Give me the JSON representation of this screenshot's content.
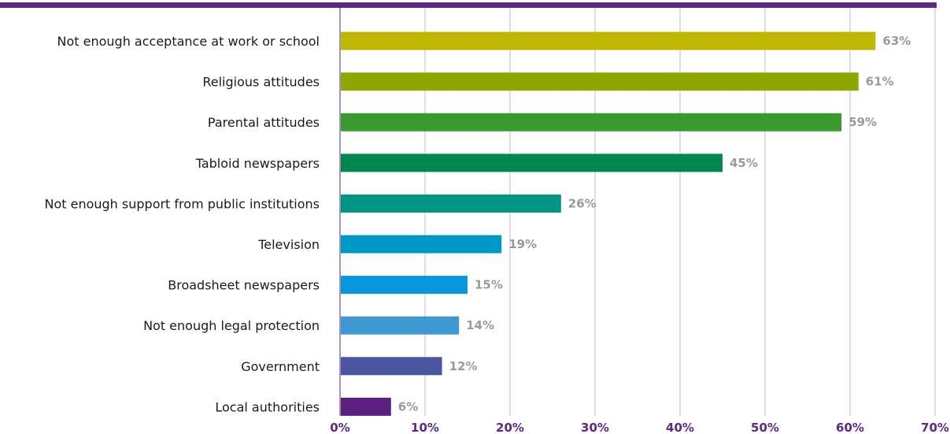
{
  "chart_data": {
    "type": "bar",
    "orientation": "horizontal",
    "categories": [
      "Not enough acceptance at work or school",
      "Religious attitudes",
      "Parental attitudes",
      "Tabloid newspapers",
      "Not enough support from public institutions",
      "Television",
      "Broadsheet newspapers",
      "Not enough legal protection",
      "Government",
      "Local authorities"
    ],
    "values": [
      63,
      61,
      59,
      45,
      26,
      19,
      15,
      14,
      12,
      6
    ],
    "value_labels": [
      "63%",
      "61%",
      "59%",
      "45%",
      "26%",
      "19%",
      "15%",
      "14%",
      "12%",
      "6%"
    ],
    "bar_colors": [
      "#c0b800",
      "#8fa800",
      "#3a9a2e",
      "#00874f",
      "#009484",
      "#0098c6",
      "#0a96dc",
      "#3d98d2",
      "#4a56a0",
      "#5a2080"
    ],
    "xlim": [
      0,
      70
    ],
    "x_ticks": [
      0,
      10,
      20,
      30,
      40,
      50,
      60,
      70
    ],
    "x_tick_labels": [
      "0%",
      "10%",
      "20%",
      "30%",
      "40%",
      "50%",
      "60%",
      "70%"
    ],
    "grid": true,
    "grid_color": "#c9b3dc",
    "top_rule_color": "#5a2a86",
    "xlabel": "",
    "ylabel": "",
    "title": ""
  }
}
